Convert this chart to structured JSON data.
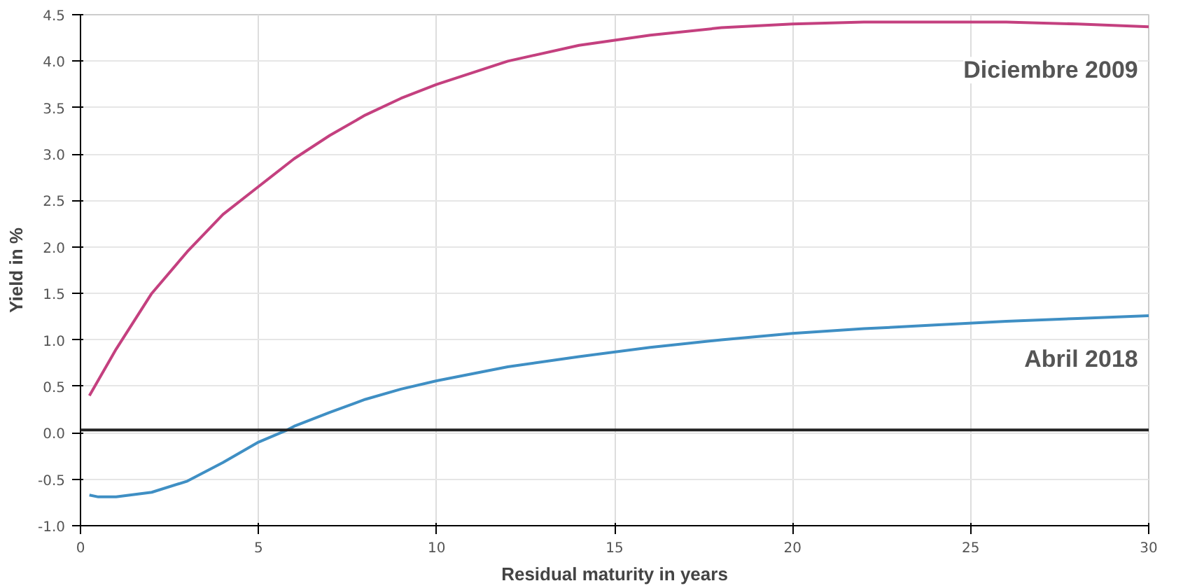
{
  "chart_data": {
    "type": "line",
    "xlabel": "Residual maturity in years",
    "ylabel": "Yield in %",
    "xlim": [
      0,
      30
    ],
    "xticks": [
      0,
      5,
      10,
      15,
      20,
      25,
      30
    ],
    "ylim": [
      -1.0,
      4.5
    ],
    "yticks": [
      {
        "value": -1,
        "label": "-1.0"
      },
      {
        "value": -0.5,
        "label": "-0.5"
      },
      {
        "value": 0,
        "label": "0.0"
      },
      {
        "value": 0.5,
        "label": "0.5"
      },
      {
        "value": 1,
        "label": "1.0"
      },
      {
        "value": 1.5,
        "label": "1.5"
      },
      {
        "value": 2,
        "label": "2.0"
      },
      {
        "value": 2.5,
        "label": "2.5"
      },
      {
        "value": 3,
        "label": "3.0"
      },
      {
        "value": 3.5,
        "label": "3.5"
      },
      {
        "value": 4,
        "label": "4.0"
      },
      {
        "value": 4.5,
        "label": "4.5"
      }
    ],
    "grid": true,
    "marker": "none",
    "line_style": "solid",
    "ref_lines": [
      {
        "axis": "y",
        "value": 0.03,
        "color": "#222222",
        "line_style": "solid"
      }
    ],
    "series": [
      {
        "name": "Diciembre 2009",
        "color": "#c4407f",
        "x": [
          0.25,
          1,
          2,
          3,
          4,
          5,
          6,
          7,
          8,
          9,
          10,
          12,
          14,
          16,
          18,
          20,
          22,
          24,
          26,
          28,
          30
        ],
        "values": [
          0.4,
          0.9,
          1.5,
          1.95,
          2.35,
          2.65,
          2.95,
          3.2,
          3.42,
          3.6,
          3.75,
          4.0,
          4.17,
          4.28,
          4.36,
          4.4,
          4.42,
          4.42,
          4.42,
          4.4,
          4.37
        ]
      },
      {
        "name": "Abril 2018",
        "color": "#3f8fc4",
        "x": [
          0.25,
          0.5,
          1,
          2,
          3,
          4,
          5,
          5.8,
          6,
          7,
          8,
          9,
          10,
          12,
          14,
          16,
          18,
          20,
          22,
          24,
          26,
          28,
          30
        ],
        "values": [
          -0.67,
          -0.69,
          -0.69,
          -0.64,
          -0.52,
          -0.32,
          -0.1,
          0.03,
          0.07,
          0.22,
          0.36,
          0.47,
          0.56,
          0.71,
          0.82,
          0.92,
          1.0,
          1.07,
          1.12,
          1.16,
          1.2,
          1.23,
          1.26
        ]
      }
    ]
  }
}
